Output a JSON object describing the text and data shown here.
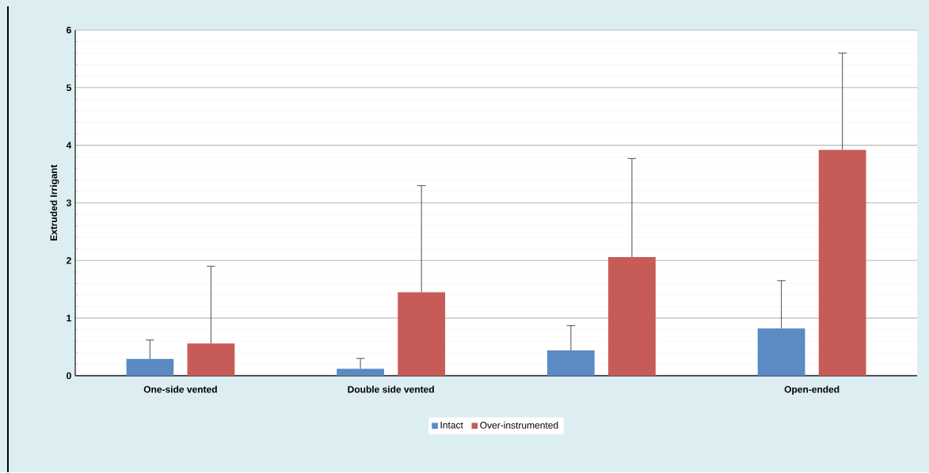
{
  "chart_data": {
    "type": "bar",
    "ylabel": "Extruded Irrigant",
    "categories": [
      "One-side vented",
      "Double side vented",
      null,
      "Open-ended"
    ],
    "series": [
      {
        "name": "Intact",
        "color": "#5b8ac5",
        "values": [
          0.29,
          0.12,
          0.44,
          0.82
        ],
        "errors": [
          [
            0.29,
            0.62
          ],
          [
            0.12,
            0.3
          ],
          [
            0.44,
            0.87
          ],
          [
            0.82,
            1.65
          ]
        ]
      },
      {
        "name": "Over-instrumented",
        "color": "#c75b58",
        "values": [
          0.56,
          1.45,
          2.06,
          3.92
        ],
        "errors": [
          [
            0.56,
            1.9
          ],
          [
            1.45,
            3.3
          ],
          [
            2.06,
            3.77
          ],
          [
            3.92,
            5.6
          ]
        ]
      }
    ],
    "ylim": [
      0,
      6
    ],
    "yticks": [
      0,
      1,
      2,
      3,
      4,
      5,
      6
    ],
    "grid": "y",
    "legend": "bottom"
  }
}
